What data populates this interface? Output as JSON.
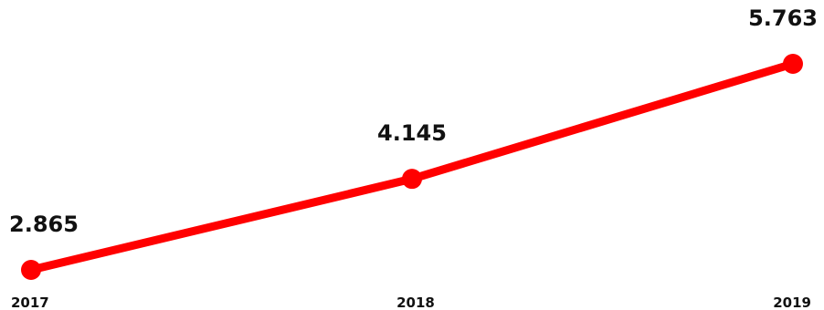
{
  "chart_data": {
    "type": "line",
    "categories": [
      "2017",
      "2018",
      "2019"
    ],
    "series": [
      {
        "values": [
          2.865,
          4.145,
          5.763
        ]
      }
    ],
    "data_labels": [
      "2.865",
      "4.145",
      "5.763"
    ],
    "colors": {
      "line": "#ff0000",
      "marker": "#ff0000"
    },
    "grid": false,
    "legend": "none",
    "axes_visible": false
  }
}
